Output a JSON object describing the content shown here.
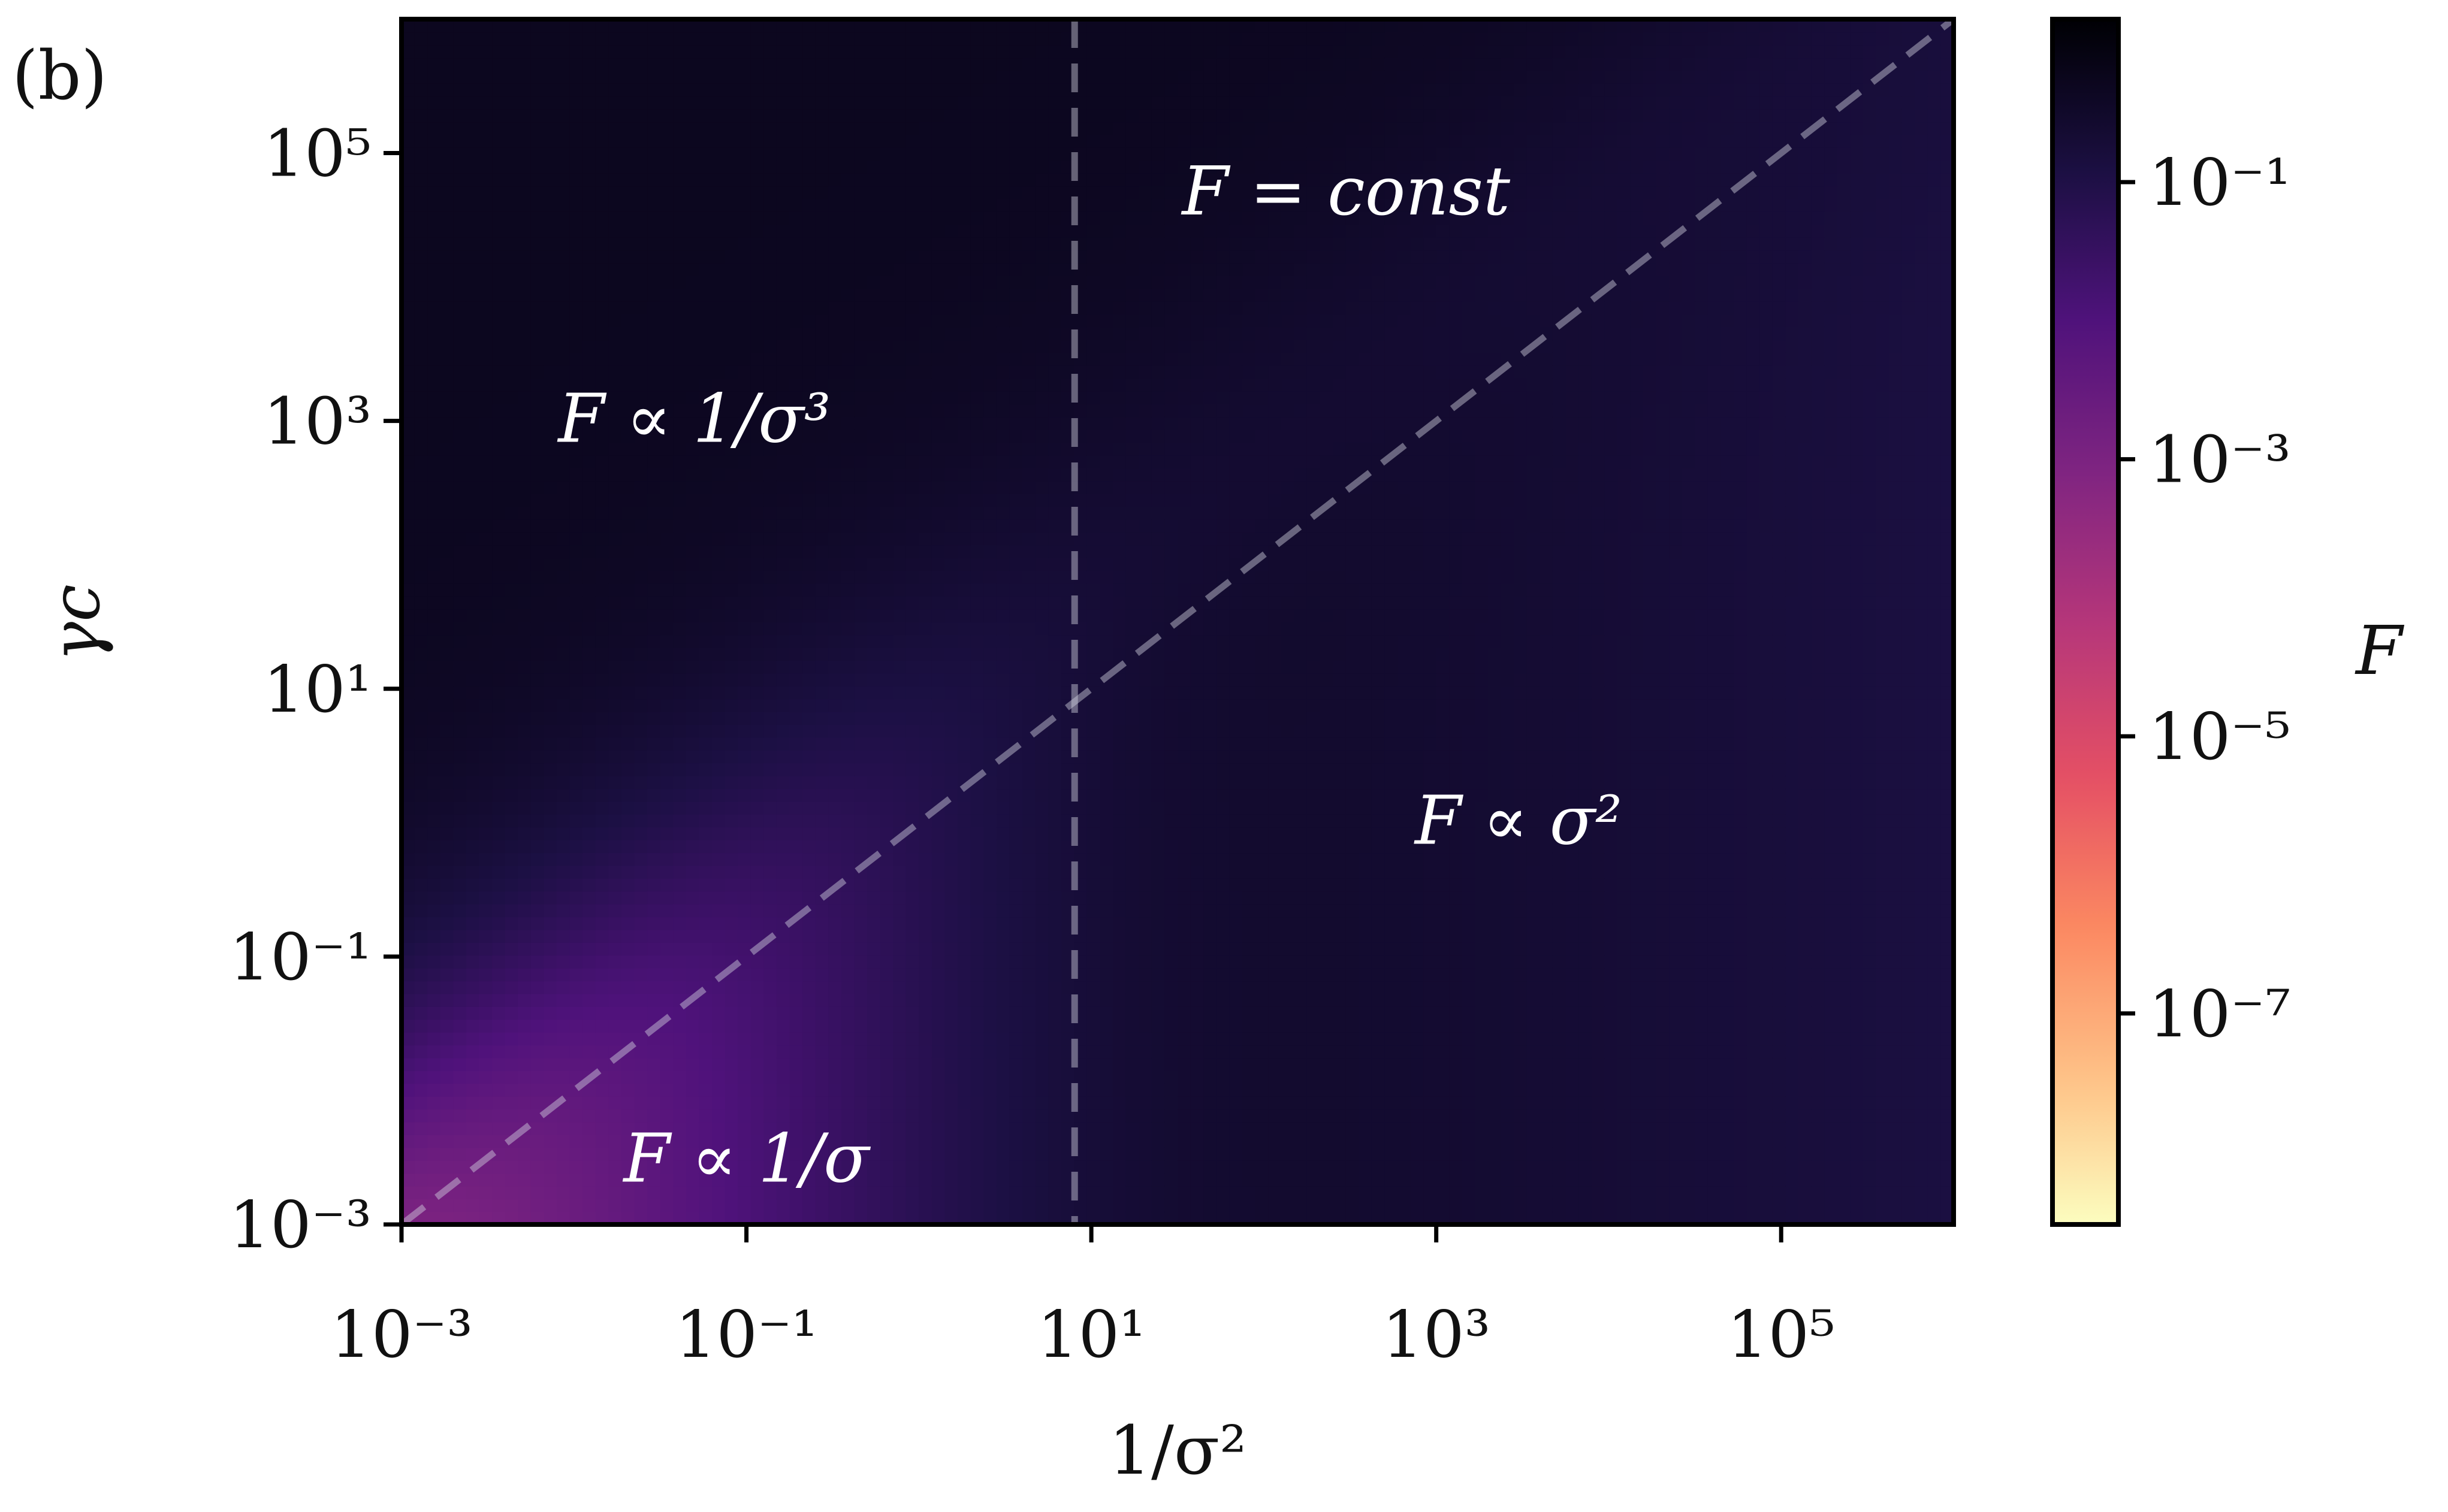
{
  "panel_label": "(b)",
  "chart_data": {
    "type": "heatmap",
    "xlabel": "1/σ²",
    "ylabel": "γc",
    "x_scale": "log",
    "y_scale": "log",
    "xlim": [
      0.001,
      1000000
    ],
    "ylim": [
      0.001,
      1000000
    ],
    "x_ticks": [
      {
        "value": 0.001,
        "label": "10⁻³"
      },
      {
        "value": 0.1,
        "label": "10⁻¹"
      },
      {
        "value": 10,
        "label": "10¹"
      },
      {
        "value": 1000,
        "label": "10³"
      },
      {
        "value": 100000,
        "label": "10⁵"
      }
    ],
    "y_ticks": [
      {
        "value": 0.001,
        "label": "10⁻³"
      },
      {
        "value": 0.1,
        "label": "10⁻¹"
      },
      {
        "value": 10,
        "label": "10¹"
      },
      {
        "value": 1000,
        "label": "10³"
      },
      {
        "value": 100000,
        "label": "10⁵"
      }
    ],
    "colorbar": {
      "label": "F",
      "scale": "log",
      "colormap": "magma_r",
      "range": [
        3e-09,
        1.5
      ],
      "ticks": [
        {
          "value": 0.1,
          "label": "10⁻¹"
        },
        {
          "value": 0.001,
          "label": "10⁻³"
        },
        {
          "value": 1e-05,
          "label": "10⁻⁵"
        },
        {
          "value": 1e-07,
          "label": "10⁻⁷"
        }
      ]
    },
    "reference_lines": [
      {
        "style": "dashed",
        "orientation": "vertical",
        "x": 8
      },
      {
        "style": "dashed",
        "orientation": "diagonal",
        "x": [
          0.001,
          1000000
        ],
        "y": [
          0.001,
          1000000
        ]
      }
    ],
    "regions": [
      {
        "label": "F = const",
        "x": 300,
        "y": 50000
      },
      {
        "label": "F ∝ 1/σ³",
        "x": 0.05,
        "y": 1000
      },
      {
        "label": "F ∝ σ²",
        "x": 3000,
        "y": 1
      },
      {
        "label": "F ∝ 1/σ",
        "x": 0.1,
        "y": 0.003
      }
    ],
    "model": {
      "description": "log10 F as function of u=log10(1/σ²), v=log10(γc)",
      "plateau": -0.3,
      "max_value": 0.18,
      "min_value": -8.5
    }
  }
}
